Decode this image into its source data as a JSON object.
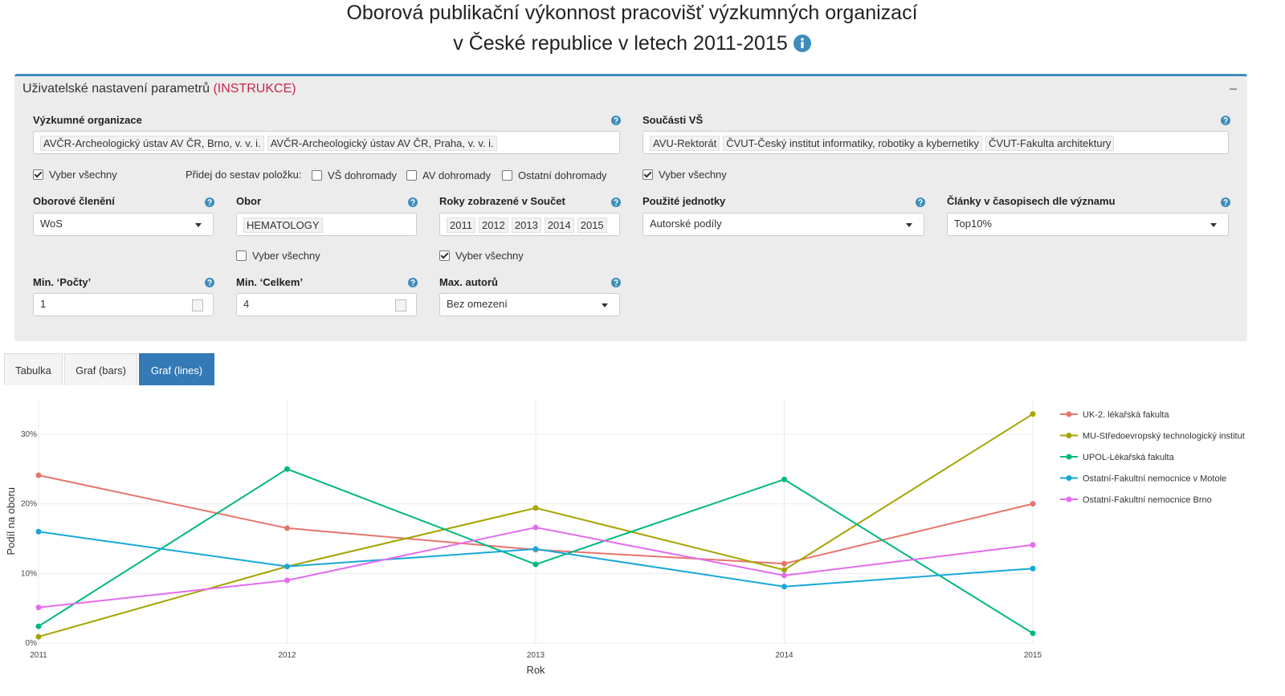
{
  "header": {
    "title_line1": "Oborová publikační výkonnost pracovišť výzkumných organizací",
    "title_line2": "v České republice v letech 2011-2015"
  },
  "panel": {
    "title": "Uživatelské nastavení parametrů",
    "instructions": "(INSTRUKCE)",
    "organizations": {
      "label": "Výzkumné organizace",
      "tags": [
        "AVČR-Archeologický ústav AV ČR, Brno, v. v. i.",
        "AVČR-Archeologický ústav AV ČR, Praha, v. v. i."
      ],
      "select_all": {
        "label": "Vyber všechny",
        "checked": true
      }
    },
    "add_items": {
      "label": "Přidej do sestav položku:",
      "options": [
        {
          "label": "VŠ dohromady",
          "checked": false
        },
        {
          "label": "AV dohromady",
          "checked": false
        },
        {
          "label": "Ostatní dohromady",
          "checked": false
        }
      ]
    },
    "university_parts": {
      "label": "Součásti VŠ",
      "tags": [
        "AVU-Rektorát",
        "ČVUT-Český institut informatiky, robotiky a kybernetiky",
        "ČVUT-Fakulta architektury"
      ],
      "select_all": {
        "label": "Vyber všechny",
        "checked": true
      }
    },
    "field_division": {
      "label": "Oborové členění",
      "value": "WoS"
    },
    "field": {
      "label": "Obor",
      "tags": [
        "HEMATOLOGY"
      ],
      "select_all": {
        "label": "Vyber všechny",
        "checked": false
      }
    },
    "years": {
      "label": "Roky zobrazené v Součet",
      "tags": [
        "2011",
        "2012",
        "2013",
        "2014",
        "2015"
      ],
      "select_all": {
        "label": "Vyber všechny",
        "checked": true
      }
    },
    "units": {
      "label": "Použité jednotky",
      "value": "Autorské podíly"
    },
    "journal_rank": {
      "label": "Články v časopisech dle významu",
      "value": "Top10%"
    },
    "min_counts": {
      "label": "Min. ‘Počty’",
      "value": 1
    },
    "min_total": {
      "label": "Min. ‘Celkem’",
      "value": 4
    },
    "max_authors": {
      "label": "Max. autorů",
      "value": "Bez omezení"
    }
  },
  "tabs": [
    {
      "label": "Tabulka",
      "active": false
    },
    {
      "label": "Graf (bars)",
      "active": false
    },
    {
      "label": "Graf (lines)",
      "active": true
    }
  ],
  "chart_data": {
    "type": "line",
    "x_label": "Rok",
    "y_label": "Podíl na oboru",
    "x": [
      2011,
      2012,
      2013,
      2014,
      2015
    ],
    "series": [
      {
        "name": "UK-2. lékařská fakulta",
        "color": "#e6756c",
        "values": [
          24.1,
          16.5,
          13.4,
          11.4,
          20.0
        ]
      },
      {
        "name": "MU-Středoevropský technologický institut",
        "color": "#a3a500",
        "values": [
          0.9,
          11.0,
          19.4,
          10.5,
          32.9
        ]
      },
      {
        "name": "UPOL-Lékařská fakulta",
        "color": "#00b77f",
        "values": [
          2.4,
          25.0,
          11.3,
          23.5,
          1.4
        ]
      },
      {
        "name": "Ostatní-Fakultní nemocnice v Motole",
        "color": "#17a8d8",
        "values": [
          16.0,
          11.0,
          13.5,
          8.1,
          10.7
        ]
      },
      {
        "name": "Ostatní-Fakultní nemocnice Brno",
        "color": "#e46ced",
        "values": [
          5.1,
          9.0,
          16.6,
          9.7,
          14.1
        ]
      }
    ],
    "xlim": [
      2011,
      2015
    ],
    "xticks": [
      2011,
      2012,
      2013,
      2014,
      2015
    ],
    "ylim": [
      0,
      35
    ],
    "yticks": [
      {
        "value": 0,
        "label": "0%"
      },
      {
        "value": 10,
        "label": "10%"
      },
      {
        "value": 20,
        "label": "20%"
      },
      {
        "value": 30,
        "label": "30%"
      }
    ],
    "grid": true,
    "legend": "right"
  }
}
